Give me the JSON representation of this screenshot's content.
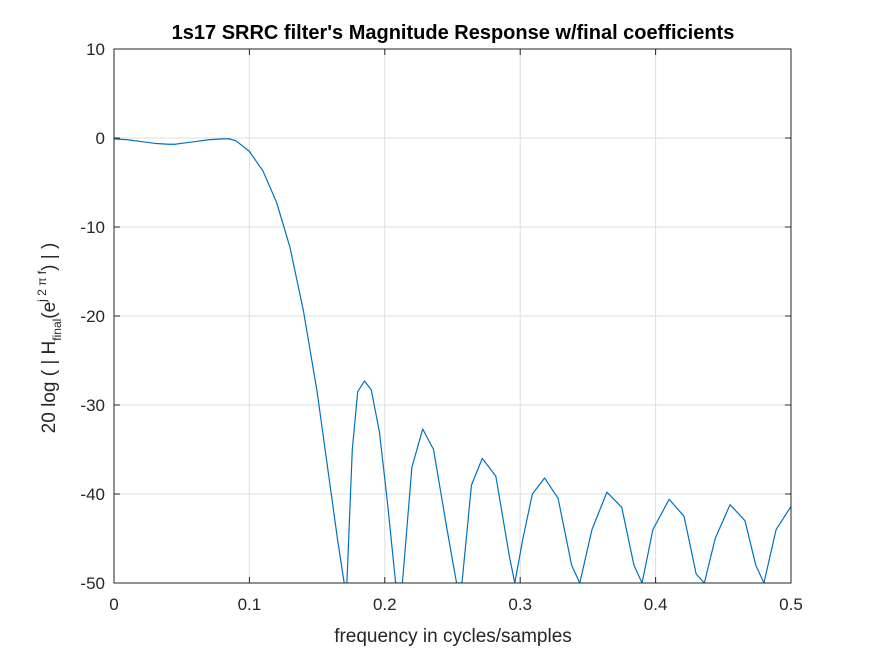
{
  "chart_data": {
    "type": "line",
    "title": "1s17 SRRC filter's Magnitude Response w/final coefficients",
    "xlabel": "frequency in cycles/samples",
    "ylabel": {
      "prefix": "20  log ( | H",
      "subscript": "final",
      "mid": "(e",
      "superscript": "j 2 π f",
      "suffix": ") | )"
    },
    "xlim": [
      0,
      0.5
    ],
    "ylim": [
      -50,
      10
    ],
    "xticks": [
      0,
      0.1,
      0.2,
      0.3,
      0.4,
      0.5
    ],
    "xtick_labels": [
      "0",
      "0.1",
      "0.2",
      "0.3",
      "0.4",
      "0.5"
    ],
    "yticks": [
      -50,
      -40,
      -30,
      -20,
      -10,
      0,
      10
    ],
    "ytick_labels": [
      "-50",
      "-40",
      "-30",
      "-20",
      "-10",
      "0",
      "10"
    ],
    "grid": true,
    "series_color": "#0072BD",
    "series": [
      {
        "x": [
          0,
          0.01,
          0.02,
          0.03,
          0.04,
          0.045,
          0.05,
          0.06,
          0.07,
          0.08,
          0.085,
          0.09,
          0.1,
          0.11,
          0.12,
          0.13,
          0.14,
          0.15,
          0.16,
          0.165,
          0.17,
          0.172,
          0.176,
          0.18,
          0.185,
          0.19,
          0.196,
          0.202,
          0.208,
          0.213,
          0.22,
          0.228,
          0.236,
          0.246,
          0.253,
          0.257,
          0.264,
          0.272,
          0.282,
          0.292,
          0.296,
          0.302,
          0.309,
          0.318,
          0.328,
          0.338,
          0.344,
          0.353,
          0.364,
          0.375,
          0.384,
          0.39,
          0.398,
          0.41,
          0.421,
          0.43,
          0.436,
          0.444,
          0.455,
          0.466,
          0.474,
          0.48,
          0.489,
          0.5
        ],
        "y": [
          -0.1,
          -0.2,
          -0.4,
          -0.6,
          -0.7,
          -0.7,
          -0.6,
          -0.4,
          -0.2,
          -0.1,
          -0.1,
          -0.3,
          -1.5,
          -3.7,
          -7.2,
          -12.3,
          -19.5,
          -28.5,
          -39.5,
          -45,
          -50,
          -50,
          -35,
          -28.5,
          -27.3,
          -28.3,
          -33,
          -41,
          -50,
          -50,
          -37,
          -32.7,
          -35,
          -44,
          -50,
          -50,
          -39,
          -36,
          -38,
          -47,
          -50,
          -45,
          -40,
          -38.2,
          -40.5,
          -48,
          -50,
          -44,
          -39.8,
          -41.5,
          -48,
          -50,
          -44,
          -40.6,
          -42.5,
          -49,
          -50,
          -45,
          -41.2,
          -43,
          -48,
          -50,
          -44,
          -41.4
        ]
      }
    ]
  }
}
